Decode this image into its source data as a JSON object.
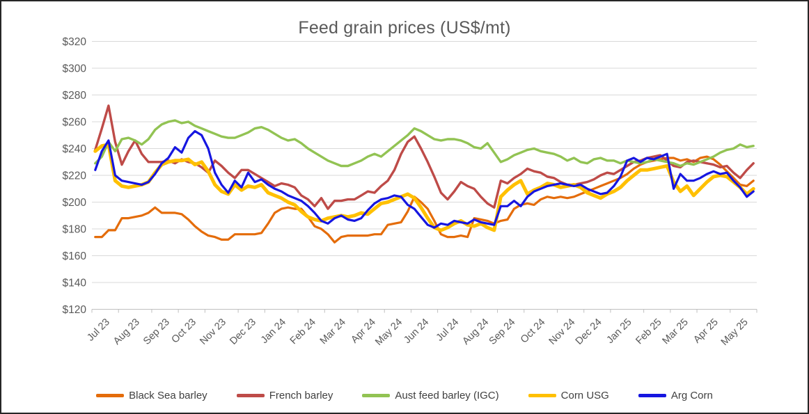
{
  "window": {
    "background": "#ffffff",
    "border_color": "#262626"
  },
  "chart_data": {
    "type": "line",
    "title": "Feed grain prices (US$/mt)",
    "xlabel": "",
    "ylabel": "",
    "grid": true,
    "legend_position": "bottom",
    "y_axis": {
      "min": 120,
      "max": 320,
      "step": 20,
      "tick_labels": [
        "$120",
        "$140",
        "$160",
        "$180",
        "$200",
        "$220",
        "$240",
        "$260",
        "$280",
        "$300",
        "$320"
      ]
    },
    "x_axis": {
      "tick_labels": [
        "Jul 23",
        "Aug 23",
        "Sep 23",
        "Oct 23",
        "Nov 23",
        "Dec 23",
        "Jan 24",
        "Feb 24",
        "Mar 24",
        "Apr 24",
        "May 24",
        "Jun 24",
        "Jul 24",
        "Aug 24",
        "Sep 24",
        "Oct 24",
        "Nov 24",
        "Dec 24",
        "Jan 25",
        "Feb 25",
        "Mar 25",
        "Apr 25",
        "May 25"
      ],
      "weeks_per_month": [
        4,
        5,
        4,
        4,
        5,
        4,
        5,
        4,
        5,
        4,
        4,
        4,
        5,
        4,
        4,
        5,
        4,
        4,
        5,
        4,
        4,
        5,
        4
      ]
    },
    "colors": {
      "grid": "#d9d9d9",
      "axis": "#bfbfbf",
      "axis_text": "#595959",
      "title_text": "#595959"
    },
    "series": [
      {
        "name": "Black Sea barley",
        "color": "#e46c0a",
        "width": 3.2,
        "values": [
          174,
          174,
          179,
          179,
          188,
          188,
          189,
          190,
          192,
          196,
          192,
          192,
          192,
          191,
          187,
          182,
          178,
          175,
          174,
          172,
          172,
          176,
          176,
          176,
          176,
          177,
          184,
          192,
          195,
          196,
          195,
          195,
          189,
          182,
          180,
          176,
          170,
          174,
          175,
          175,
          175,
          175,
          176,
          176,
          183,
          184,
          185,
          193,
          204,
          200,
          195,
          186,
          176,
          174,
          174,
          175,
          174,
          188,
          187,
          186,
          184,
          186,
          187,
          195,
          198,
          199,
          198,
          202,
          204,
          203,
          204,
          203,
          204,
          206,
          208,
          210,
          212,
          214,
          216,
          218,
          221,
          225,
          228,
          230,
          231,
          232,
          233,
          233,
          231,
          232,
          230,
          233,
          234,
          232,
          228,
          223,
          218,
          213,
          212,
          216
        ]
      },
      {
        "name": "French barley",
        "color": "#be4b48",
        "width": 3.4,
        "values": [
          239,
          255,
          272,
          245,
          228,
          238,
          246,
          236,
          230,
          230,
          230,
          231,
          229,
          232,
          230,
          229,
          226,
          222,
          231,
          227,
          222,
          218,
          224,
          224,
          221,
          218,
          215,
          212,
          214,
          213,
          211,
          205,
          202,
          197,
          203,
          195,
          201,
          201,
          202,
          202,
          205,
          208,
          207,
          212,
          216,
          224,
          236,
          245,
          249,
          240,
          230,
          219,
          207,
          202,
          208,
          215,
          212,
          210,
          204,
          199,
          196,
          216,
          214,
          218,
          221,
          225,
          223,
          222,
          219,
          218,
          215,
          213,
          213,
          214,
          215,
          217,
          220,
          222,
          221,
          224,
          227,
          230,
          231,
          233,
          234,
          235,
          231,
          227,
          226,
          230,
          231,
          230,
          229,
          228,
          226,
          227,
          222,
          218,
          224,
          229
        ]
      },
      {
        "name": "Aust feed barley (IGC)",
        "color": "#92c353",
        "width": 3.4,
        "values": [
          229,
          234,
          245,
          238,
          247,
          248,
          246,
          243,
          247,
          254,
          258,
          260,
          261,
          259,
          260,
          257,
          255,
          253,
          251,
          249,
          248,
          248,
          250,
          252,
          255,
          256,
          254,
          251,
          248,
          246,
          247,
          244,
          240,
          237,
          234,
          231,
          229,
          227,
          227,
          229,
          231,
          234,
          236,
          234,
          238,
          242,
          246,
          250,
          255,
          253,
          250,
          247,
          246,
          247,
          247,
          246,
          244,
          241,
          240,
          244,
          237,
          230,
          232,
          235,
          237,
          239,
          240,
          238,
          237,
          236,
          234,
          231,
          233,
          230,
          229,
          232,
          233,
          231,
          231,
          229,
          231,
          230,
          229,
          230,
          232,
          231,
          230,
          229,
          227,
          229,
          228,
          230,
          232,
          234,
          237,
          239,
          240,
          243,
          241,
          242
        ]
      },
      {
        "name": "Corn USG",
        "color": "#ffc000",
        "width": 5,
        "values": [
          238,
          242,
          243,
          216,
          212,
          211,
          212,
          213,
          215,
          222,
          228,
          230,
          231,
          231,
          232,
          228,
          230,
          223,
          213,
          208,
          206,
          213,
          209,
          212,
          211,
          213,
          207,
          205,
          203,
          200,
          198,
          193,
          189,
          187,
          186,
          188,
          189,
          190,
          189,
          190,
          192,
          191,
          195,
          199,
          200,
          202,
          204,
          206,
          203,
          196,
          188,
          181,
          179,
          181,
          184,
          186,
          183,
          182,
          184,
          181,
          179,
          204,
          209,
          213,
          216,
          206,
          209,
          211,
          214,
          213,
          211,
          212,
          213,
          211,
          207,
          205,
          203,
          206,
          208,
          211,
          216,
          220,
          224,
          224,
          225,
          226,
          227,
          215,
          208,
          212,
          205,
          210,
          215,
          219,
          220,
          219,
          215,
          211,
          206,
          210
        ]
      },
      {
        "name": "Arg Corn",
        "color": "#1616e0",
        "width": 3.2,
        "values": [
          224,
          238,
          246,
          220,
          216,
          215,
          214,
          213,
          215,
          221,
          229,
          233,
          241,
          237,
          248,
          253,
          250,
          240,
          222,
          213,
          207,
          216,
          211,
          222,
          215,
          217,
          213,
          210,
          208,
          205,
          203,
          201,
          197,
          192,
          186,
          184,
          188,
          190,
          187,
          186,
          188,
          194,
          199,
          202,
          203,
          205,
          204,
          198,
          195,
          189,
          183,
          181,
          184,
          183,
          186,
          185,
          184,
          187,
          185,
          184,
          183,
          197,
          197,
          201,
          197,
          204,
          208,
          210,
          212,
          213,
          214,
          213,
          212,
          213,
          210,
          208,
          206,
          207,
          212,
          219,
          231,
          233,
          230,
          233,
          232,
          234,
          236,
          210,
          221,
          216,
          216,
          218,
          221,
          223,
          221,
          222,
          216,
          211,
          204,
          208
        ]
      }
    ]
  }
}
